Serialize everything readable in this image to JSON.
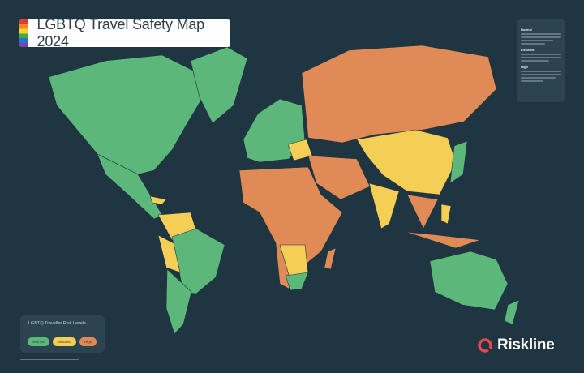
{
  "title": "LGBTQ Travel Safety Map 2024",
  "colors": {
    "background": "#1f3541",
    "normal": "#5cb87a",
    "elevated": "#f5cf55",
    "high": "#e08a55",
    "border": "#1f3541"
  },
  "legend": {
    "title": "LGBTQ Traveller Risk Levels",
    "levels": [
      {
        "label": "Normal",
        "color": "#5cb87a"
      },
      {
        "label": "Elevated",
        "color": "#f5cf55"
      },
      {
        "label": "High",
        "color": "#e08a55"
      }
    ]
  },
  "info_panel": {
    "sections": [
      {
        "heading": "Normal"
      },
      {
        "heading": "Elevated"
      },
      {
        "heading": "High"
      }
    ]
  },
  "brand": {
    "name": "Riskline",
    "icon": "riskline-logo-icon"
  },
  "regions": [
    {
      "id": "north-america",
      "level": "normal"
    },
    {
      "id": "greenland",
      "level": "normal"
    },
    {
      "id": "mexico-central-america",
      "level": "normal"
    },
    {
      "id": "caribbean",
      "level": "elevated"
    },
    {
      "id": "northern-south-america",
      "level": "elevated"
    },
    {
      "id": "brazil",
      "level": "normal"
    },
    {
      "id": "andes",
      "level": "elevated"
    },
    {
      "id": "southern-cone",
      "level": "normal"
    },
    {
      "id": "europe",
      "level": "normal"
    },
    {
      "id": "eastern-europe",
      "level": "elevated"
    },
    {
      "id": "russia",
      "level": "high"
    },
    {
      "id": "central-east-asia",
      "level": "elevated"
    },
    {
      "id": "india",
      "level": "elevated"
    },
    {
      "id": "middle-east",
      "level": "high"
    },
    {
      "id": "africa",
      "level": "high"
    },
    {
      "id": "southern-africa",
      "level": "elevated"
    },
    {
      "id": "south-africa",
      "level": "normal"
    },
    {
      "id": "madagascar",
      "level": "high"
    },
    {
      "id": "japan",
      "level": "normal"
    },
    {
      "id": "southeast-asia",
      "level": "high"
    },
    {
      "id": "indonesia",
      "level": "high"
    },
    {
      "id": "philippines",
      "level": "elevated"
    },
    {
      "id": "australia",
      "level": "normal"
    },
    {
      "id": "new-zealand",
      "level": "normal"
    }
  ]
}
